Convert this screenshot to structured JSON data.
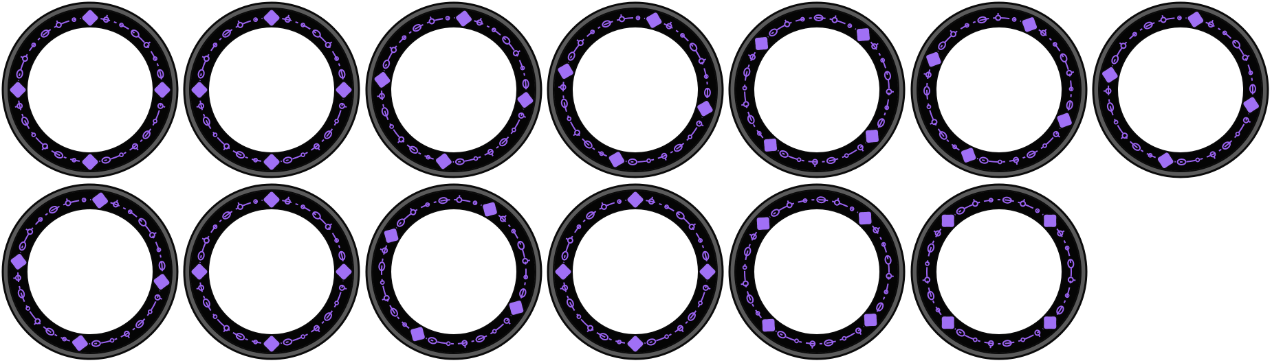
{
  "sprite_sheet": {
    "background": "#ffffff",
    "colors": {
      "rim": "#5a5a5a",
      "outline": "#0a0a0a",
      "band": "#050505",
      "rune": "#9a63f0",
      "rune_dark": "#6d3fc8",
      "gem": "#a070f5"
    },
    "rings": [
      {
        "id": "ring-1",
        "gems": 4,
        "rotation_deg": 0
      },
      {
        "id": "ring-2",
        "gems": 4,
        "rotation_deg": 0
      },
      {
        "id": "ring-3",
        "gems": 4,
        "rotation_deg": 8
      },
      {
        "id": "ring-4",
        "gems": 4,
        "rotation_deg": 15
      },
      {
        "id": "ring-5",
        "gems": 4,
        "rotation_deg": 40
      },
      {
        "id": "ring-6",
        "gems": 4,
        "rotation_deg": 25
      },
      {
        "id": "ring-7",
        "gems": 4,
        "rotation_deg": 12
      },
      {
        "id": "ring-8",
        "gems": 4,
        "rotation_deg": 8
      },
      {
        "id": "ring-9",
        "gems": 4,
        "rotation_deg": 0
      },
      {
        "id": "ring-10",
        "gems": 4,
        "rotation_deg": 30
      },
      {
        "id": "ring-11",
        "gems": 4,
        "rotation_deg": 0
      },
      {
        "id": "ring-12",
        "gems": 4,
        "rotation_deg": 42
      },
      {
        "id": "ring-13",
        "gems": 4,
        "rotation_deg": 45
      }
    ]
  }
}
